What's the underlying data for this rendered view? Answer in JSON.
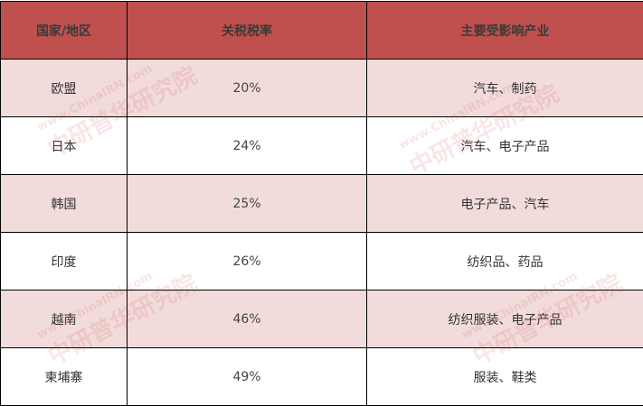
{
  "headers": [
    "国家/地区",
    "关税税率",
    "主要受影响产业"
  ],
  "rows": [
    {
      "country": "欧盟",
      "rate": "20%",
      "industry": "汽车、制药"
    },
    {
      "country": "日本",
      "rate": "24%",
      "industry": "汽车、电子产品"
    },
    {
      "country": "韩国",
      "rate": "25%",
      "industry": "电子产品、汽车"
    },
    {
      "country": "印度",
      "rate": "26%",
      "industry": "纺织品、药品"
    },
    {
      "country": "越南",
      "rate": "46%",
      "industry": "纺织服装、电子产品"
    },
    {
      "country": "柬埔寨",
      "rate": "49%",
      "industry": "服装、鞋类"
    }
  ],
  "watermark": {
    "url": "www.ChinaIRN.com",
    "name": "中研普华研究院",
    "logo": "CIRN"
  },
  "colors": {
    "header": "#c0504d",
    "band": "#f2dcdb"
  }
}
